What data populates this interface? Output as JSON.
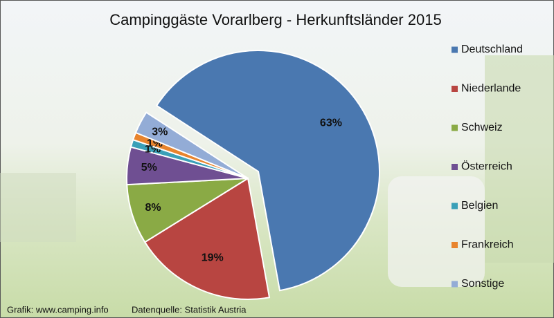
{
  "chart_data": {
    "type": "pie",
    "title": "Campinggäste Vorarlberg - Herkunftsländer 2015",
    "categories": [
      "Deutschland",
      "Niederlande",
      "Schweiz",
      "Österreich",
      "Belgien",
      "Frankreich",
      "Sonstige"
    ],
    "values": [
      63,
      19,
      8,
      5,
      1,
      1,
      3
    ],
    "value_labels": [
      "63%",
      "19%",
      "8%",
      "5%",
      "1%",
      "1%",
      "3%"
    ],
    "colors": [
      "#4a78b0",
      "#b84541",
      "#8aaa45",
      "#6f4f92",
      "#3aa0b8",
      "#e8842e",
      "#93acd6"
    ],
    "legend": "right",
    "footer": [
      "Grafik: www.camping.info",
      "Datenquelle: Statistik Austria"
    ]
  }
}
